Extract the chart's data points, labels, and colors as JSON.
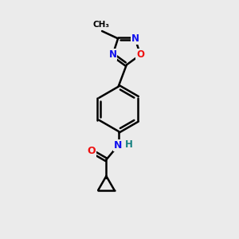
{
  "background_color": "#ebebeb",
  "atom_colors": {
    "C": "#000000",
    "N": "#1010ee",
    "O": "#ee1010",
    "H": "#148080"
  },
  "bond_color": "#000000",
  "bond_width": 1.8,
  "figsize": [
    3.0,
    3.0
  ],
  "dpi": 100,
  "xlim": [
    0,
    10
  ],
  "ylim": [
    0,
    10
  ]
}
